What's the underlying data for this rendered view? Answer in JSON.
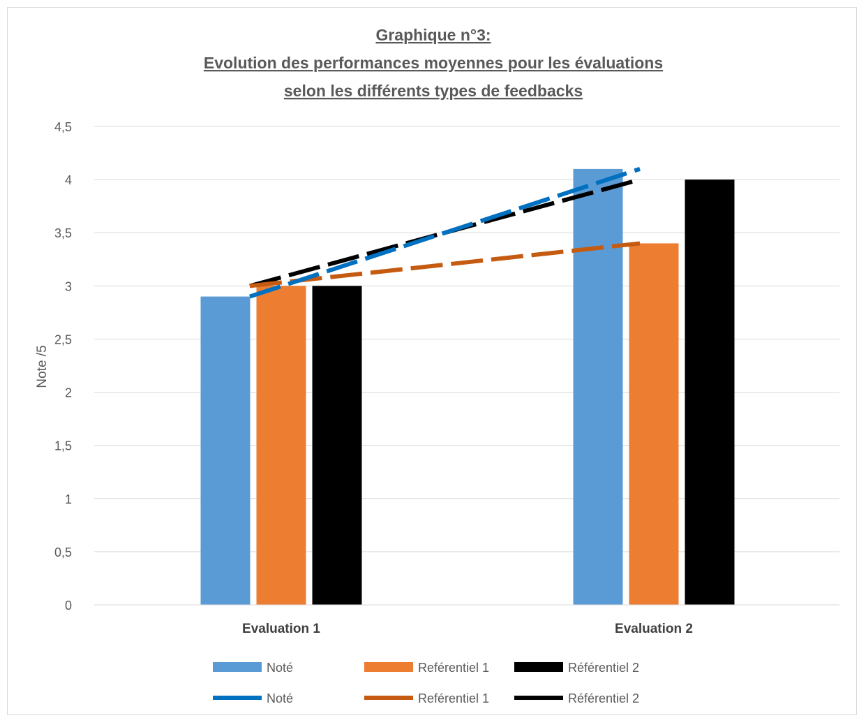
{
  "chart_data": {
    "type": "bar",
    "title_lines": [
      "Graphique n°3:",
      "Evolution des performances moyennes pour les évaluations",
      "selon les différents types de feedbacks"
    ],
    "xlabel": "",
    "ylabel": "Note /5",
    "categories": [
      "Evaluation 1",
      "Evaluation 2"
    ],
    "ylim": [
      0,
      4.5
    ],
    "yticks": [
      "0",
      "0,5",
      "1",
      "1,5",
      "2",
      "2,5",
      "3",
      "3,5",
      "4",
      "4,5"
    ],
    "grid": true,
    "legend_position": "bottom",
    "series": [
      {
        "name": "Noté",
        "values": [
          2.9,
          4.1
        ],
        "color": "#5b9bd5"
      },
      {
        "name": "Reférentiel 1",
        "values": [
          3.0,
          3.4
        ],
        "color": "#ed7d31"
      },
      {
        "name": "Référentiel 2",
        "values": [
          3.0,
          4.0
        ],
        "color": "#000000"
      }
    ],
    "trendlines": [
      {
        "name": "Noté",
        "color": "#0070c0",
        "style": "dashed"
      },
      {
        "name": "Reférentiel 1",
        "color": "#c55a11",
        "style": "dashed"
      },
      {
        "name": "Référentiel 2",
        "color": "#000000",
        "style": "dashed"
      }
    ]
  }
}
